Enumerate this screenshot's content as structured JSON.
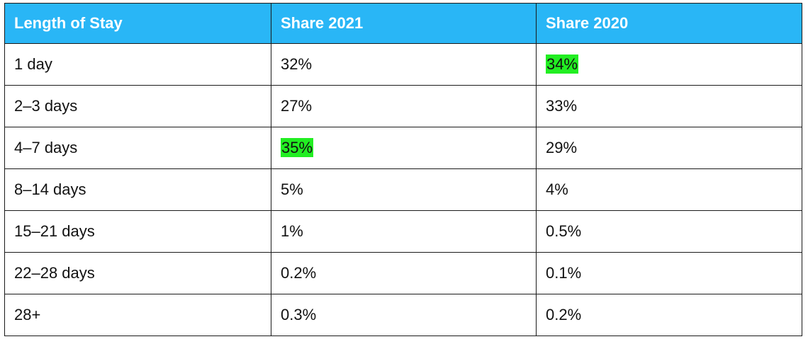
{
  "table": {
    "headers": [
      "Length of Stay",
      "Share 2021",
      "Share 2020"
    ],
    "rows": [
      {
        "stay": "1 day",
        "share_2021": "32%",
        "share_2020": "34%",
        "highlight": "share_2020"
      },
      {
        "stay": "2–3 days",
        "share_2021": "27%",
        "share_2020": "33%",
        "highlight": ""
      },
      {
        "stay": "4–7 days",
        "share_2021": "35%",
        "share_2020": "29%",
        "highlight": "share_2021"
      },
      {
        "stay": "8–14 days",
        "share_2021": "5%",
        "share_2020": "4%",
        "highlight": ""
      },
      {
        "stay": "15–21 days",
        "share_2021": "1%",
        "share_2020": "0.5%",
        "highlight": ""
      },
      {
        "stay": "22–28 days",
        "share_2021": "0.2%",
        "share_2020": "0.1%",
        "highlight": ""
      },
      {
        "stay": "28+",
        "share_2021": "0.3%",
        "share_2020": "0.2%",
        "highlight": ""
      }
    ],
    "colors": {
      "header_bg": "#29b6f6",
      "header_text": "#ffffff",
      "highlight": "#22ee22",
      "border": "#1a1a1a"
    }
  }
}
